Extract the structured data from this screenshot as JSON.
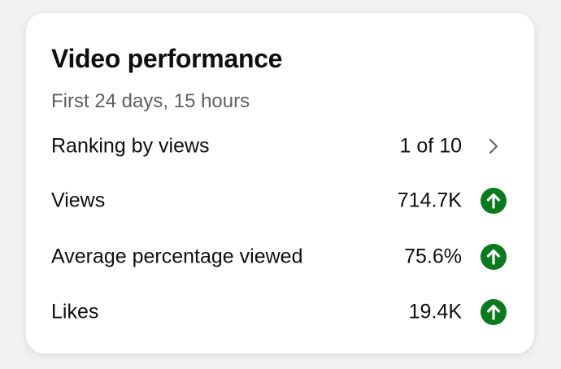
{
  "card": {
    "title": "Video performance",
    "subtitle": "First 24 days, 15 hours"
  },
  "rows": [
    {
      "label": "Ranking by views",
      "value": "1 of 10",
      "trail_icon": "chevron-right-icon"
    },
    {
      "label": "Views",
      "value": "714.7K",
      "trail_icon": "arrow-up-circle-icon"
    },
    {
      "label": "Average percentage viewed",
      "value": "75.6%",
      "trail_icon": "arrow-up-circle-icon"
    },
    {
      "label": "Likes",
      "value": "19.4K",
      "trail_icon": "arrow-up-circle-icon"
    }
  ],
  "colors": {
    "trend_up": "#0b7a1e",
    "text_primary": "#0f0f0f",
    "text_secondary": "#606060",
    "chevron": "#606060"
  }
}
